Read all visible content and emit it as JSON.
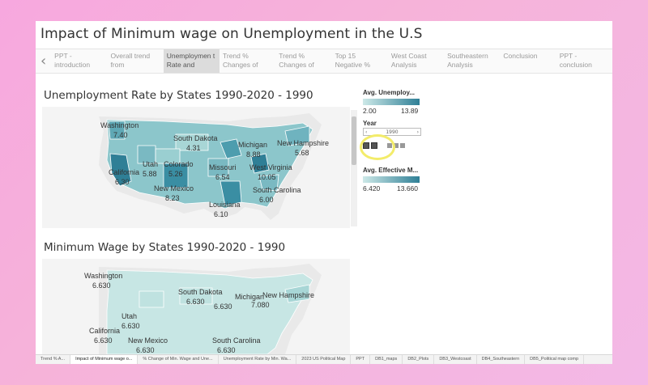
{
  "dashboard": {
    "title": "Impact of Minimum wage on Unemployment in the U.S"
  },
  "story_tabs": [
    {
      "label": "PPT - introduction",
      "active": false
    },
    {
      "label": "Overall trend from",
      "active": false
    },
    {
      "label": "Unemploymen t Rate and",
      "active": true
    },
    {
      "label": "Trend % Changes of",
      "active": false
    },
    {
      "label": "Trend % Changes of",
      "active": false
    },
    {
      "label": "Top 15 Negative %",
      "active": false
    },
    {
      "label": "West Coast Analysis",
      "active": false
    },
    {
      "label": "Southeastern Analysis",
      "active": false
    },
    {
      "label": "Conclusion",
      "active": false
    },
    {
      "label": "PPT - conclusion",
      "active": false
    }
  ],
  "sheet1": {
    "title": "Unemployment Rate by States 1990-2020 - 1990",
    "labels": [
      {
        "state": "Washington",
        "value": "7.40"
      },
      {
        "state": "South Dakota",
        "value": "4.31"
      },
      {
        "state": "Michigan",
        "value": "8.88"
      },
      {
        "state": "New Hampshire",
        "value": "5.68"
      },
      {
        "state": "Utah",
        "value": "5.88"
      },
      {
        "state": "Colorado",
        "value": "5.26"
      },
      {
        "state": "Missouri",
        "value": "6.54"
      },
      {
        "state": "West Virginia",
        "value": "10.05"
      },
      {
        "state": "California",
        "value": "6.30"
      },
      {
        "state": "New Mexico",
        "value": "8.23"
      },
      {
        "state": "South Carolina",
        "value": "6.00"
      },
      {
        "state": "Louisiana",
        "value": "6.10"
      }
    ]
  },
  "sheet2": {
    "title": "Minimum Wage by States 1990-2020 - 1990",
    "labels": [
      {
        "state": "Washington",
        "value": "6.630"
      },
      {
        "state": "South Dakota",
        "value": "6.630"
      },
      {
        "state": "Michigan",
        "value": "6.630"
      },
      {
        "state": "New Hampshire",
        "value": "7.080"
      },
      {
        "state": "Utah",
        "value": "6.630"
      },
      {
        "state": "California",
        "value": "6.630"
      },
      {
        "state": "New Mexico",
        "value": "6.630"
      },
      {
        "state": "South Carolina",
        "value": "6.630"
      }
    ]
  },
  "side_panel": {
    "legend1": {
      "title": "Avg. Unemploy...",
      "min": "2.00",
      "max": "13.89"
    },
    "year": {
      "title": "Year",
      "value": "1990"
    },
    "legend2": {
      "title": "Avg. Effective M...",
      "min": "6.420",
      "max": "13.660"
    }
  },
  "colors": {
    "map_dark": "#3a8ea3",
    "map_light": "#c7e6e4",
    "legend_low": "#cde9e8",
    "legend_high": "#2f7f96",
    "highlight": "#f3ec6a"
  },
  "bottom_tabs": [
    {
      "label": "Trend % A...",
      "active": false
    },
    {
      "label": "Impact of Minimum wage o...",
      "active": true
    },
    {
      "label": "% Change of Min. Wage and Une...",
      "active": false
    },
    {
      "label": "Unemployment Rate by Min. Wa...",
      "active": false
    },
    {
      "label": "2023 US Political Map",
      "active": false
    },
    {
      "label": "PPT",
      "active": false
    },
    {
      "label": "DB1_maps",
      "active": false
    },
    {
      "label": "DB2_Plots",
      "active": false
    },
    {
      "label": "DB3_Westcoast",
      "active": false
    },
    {
      "label": "DB4_Southeastern",
      "active": false
    },
    {
      "label": "DB5_Political map comp",
      "active": false
    }
  ]
}
